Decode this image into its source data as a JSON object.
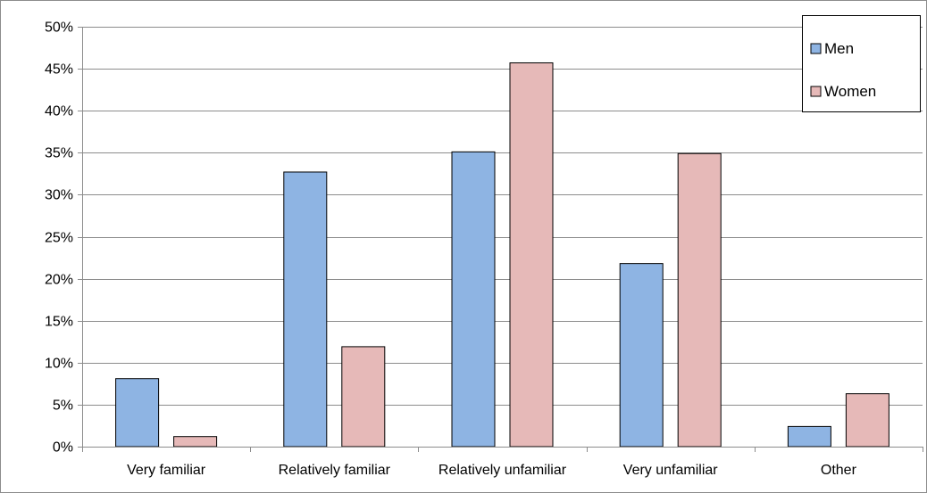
{
  "chart_data": {
    "type": "bar",
    "title": "",
    "xlabel": "",
    "ylabel": "",
    "categories": [
      "Very familiar",
      "Relatively familiar",
      "Relatively unfamiliar",
      "Very unfamiliar",
      "Other"
    ],
    "series": [
      {
        "name": "Men",
        "color": "#8eb4e3",
        "values": [
          8.1,
          32.7,
          35.1,
          21.8,
          2.4
        ]
      },
      {
        "name": "Women",
        "color": "#e6b9b8",
        "values": [
          1.2,
          11.9,
          45.7,
          34.9,
          6.3
        ]
      }
    ],
    "ylim": [
      0,
      50
    ],
    "yticks": [
      0,
      5,
      10,
      15,
      20,
      25,
      30,
      35,
      40,
      45,
      50
    ],
    "ytick_labels": [
      "0%",
      "5%",
      "10%",
      "15%",
      "20%",
      "25%",
      "30%",
      "35%",
      "40%",
      "45%",
      "50%"
    ],
    "grid": true,
    "legend": "top-right"
  }
}
